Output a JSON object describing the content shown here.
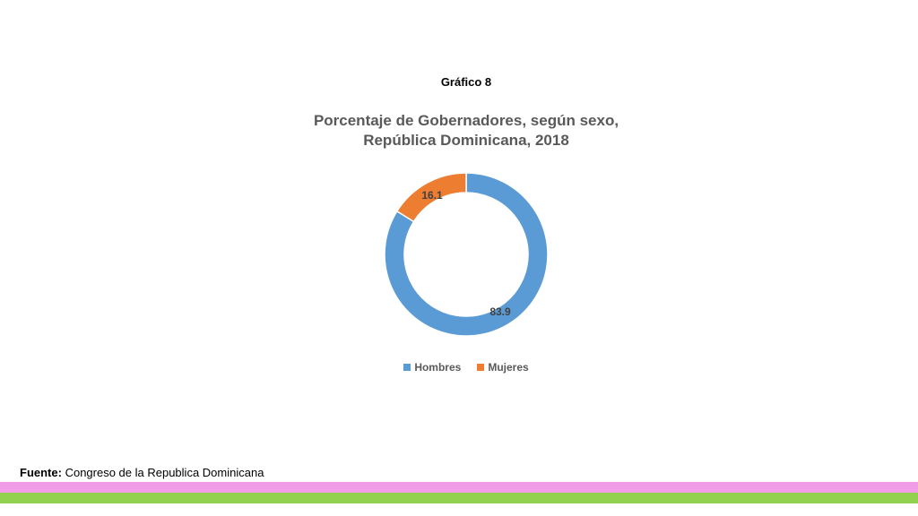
{
  "heading": "Gráfico 8",
  "source": {
    "label": "Fuente:",
    "text": "Congreso de la Republica Dominicana"
  },
  "colors": {
    "hombres": "#5B9BD5",
    "mujeres": "#ED7D31",
    "band_pink": "#F09CE6",
    "band_green": "#92D050"
  },
  "chart_data": {
    "type": "pie",
    "variant": "donut",
    "title": "Porcentaje de Gobernadores, según sexo, República Dominicana, 2018",
    "categories": [
      "Hombres",
      "Mujeres"
    ],
    "values": [
      83.9,
      16.1
    ],
    "data_labels": [
      "83.9",
      "16.1"
    ],
    "legend_position": "bottom"
  }
}
